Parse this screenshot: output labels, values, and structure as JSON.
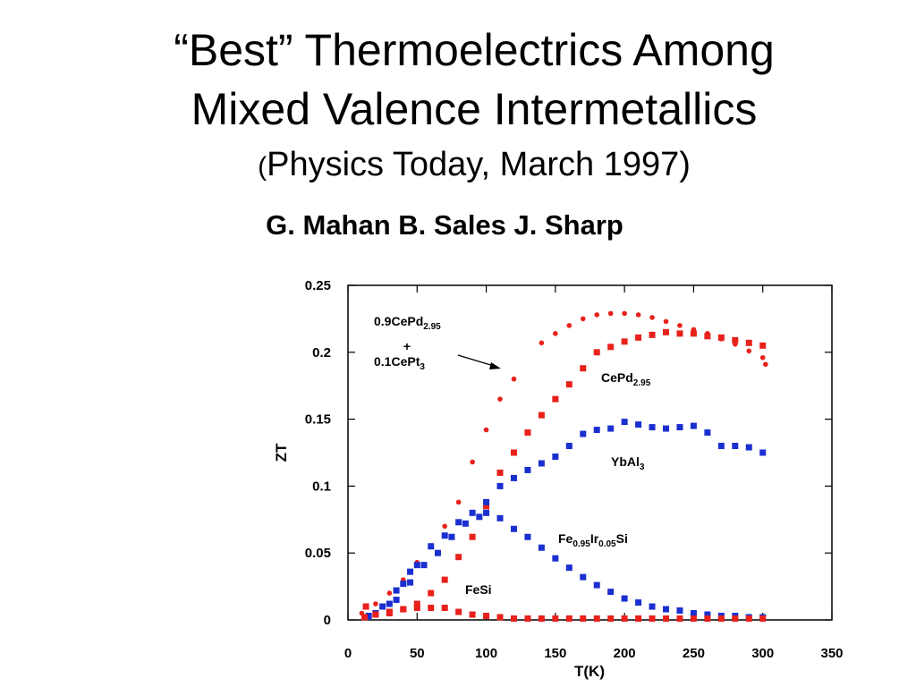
{
  "slide": {
    "title_line1": "“Best” Thermoelectrics Among",
    "title_line2": "Mixed Valence Intermetallics",
    "subtitle_open": "(",
    "subtitle_text": "Physics Today, March 1997)",
    "authors": "G. Mahan B. Sales J. Sharp"
  },
  "colors": {
    "red": "#e8211b",
    "blue": "#1a2fd0",
    "axis": "#000000"
  },
  "chart_data": {
    "type": "scatter",
    "xlabel": "T(K)",
    "ylabel": "ZT",
    "xlim": [
      0,
      350
    ],
    "ylim": [
      0,
      0.25
    ],
    "xticks": [
      "0",
      "50",
      "100",
      "150",
      "200",
      "250",
      "300",
      "350"
    ],
    "yticks": [
      "0",
      "0.05",
      "0.1",
      "0.15",
      "0.2",
      "0.25"
    ],
    "grid": false,
    "series": [
      {
        "name": "0.9CePd2.95 + 0.1CePt3",
        "color": "red",
        "marker": "dot",
        "points": [
          [
            10,
            0.005
          ],
          [
            20,
            0.012
          ],
          [
            30,
            0.02
          ],
          [
            40,
            0.03
          ],
          [
            50,
            0.043
          ],
          [
            60,
            0.055
          ],
          [
            70,
            0.07
          ],
          [
            80,
            0.088
          ],
          [
            90,
            0.118
          ],
          [
            100,
            0.142
          ],
          [
            110,
            0.165
          ],
          [
            120,
            0.18
          ],
          [
            140,
            0.207
          ],
          [
            150,
            0.214
          ],
          [
            160,
            0.22
          ],
          [
            170,
            0.225
          ],
          [
            180,
            0.228
          ],
          [
            190,
            0.229
          ],
          [
            200,
            0.229
          ],
          [
            210,
            0.228
          ],
          [
            220,
            0.226
          ],
          [
            230,
            0.223
          ],
          [
            240,
            0.22
          ],
          [
            250,
            0.217
          ],
          [
            260,
            0.214
          ],
          [
            270,
            0.21
          ],
          [
            280,
            0.206
          ],
          [
            290,
            0.201
          ],
          [
            300,
            0.196
          ],
          [
            302,
            0.191
          ]
        ]
      },
      {
        "name": "CePd2.95",
        "color": "red",
        "marker": "square",
        "points": [
          [
            13,
            0.01
          ],
          [
            20,
            0.005
          ],
          [
            30,
            0.005
          ],
          [
            40,
            0.008
          ],
          [
            50,
            0.012
          ],
          [
            60,
            0.02
          ],
          [
            70,
            0.03
          ],
          [
            80,
            0.047
          ],
          [
            90,
            0.062
          ],
          [
            100,
            0.085
          ],
          [
            110,
            0.11
          ],
          [
            120,
            0.125
          ],
          [
            130,
            0.14
          ],
          [
            140,
            0.153
          ],
          [
            150,
            0.165
          ],
          [
            160,
            0.176
          ],
          [
            170,
            0.188
          ],
          [
            180,
            0.2
          ],
          [
            190,
            0.204
          ],
          [
            200,
            0.208
          ],
          [
            210,
            0.211
          ],
          [
            220,
            0.213
          ],
          [
            230,
            0.215
          ],
          [
            240,
            0.214
          ],
          [
            250,
            0.214
          ],
          [
            260,
            0.212
          ],
          [
            270,
            0.211
          ],
          [
            280,
            0.209
          ],
          [
            290,
            0.207
          ],
          [
            300,
            0.205
          ]
        ]
      },
      {
        "name": "YbAl3",
        "color": "blue",
        "marker": "square",
        "points": [
          [
            13,
            0.002
          ],
          [
            20,
            0.005
          ],
          [
            30,
            0.012
          ],
          [
            35,
            0.022
          ],
          [
            40,
            0.027
          ],
          [
            45,
            0.036
          ],
          [
            50,
            0.041
          ],
          [
            60,
            0.055
          ],
          [
            70,
            0.063
          ],
          [
            80,
            0.073
          ],
          [
            90,
            0.08
          ],
          [
            100,
            0.088
          ],
          [
            110,
            0.1
          ],
          [
            120,
            0.106
          ],
          [
            130,
            0.112
          ],
          [
            140,
            0.117
          ],
          [
            150,
            0.122
          ],
          [
            160,
            0.13
          ],
          [
            170,
            0.139
          ],
          [
            180,
            0.142
          ],
          [
            190,
            0.143
          ],
          [
            200,
            0.148
          ],
          [
            210,
            0.146
          ],
          [
            220,
            0.144
          ],
          [
            230,
            0.143
          ],
          [
            240,
            0.144
          ],
          [
            250,
            0.145
          ],
          [
            260,
            0.14
          ],
          [
            270,
            0.13
          ],
          [
            280,
            0.13
          ],
          [
            290,
            0.129
          ],
          [
            300,
            0.125
          ]
        ]
      },
      {
        "name": "Fe0.95Ir0.05Si",
        "color": "blue",
        "marker": "square",
        "points": [
          [
            15,
            0.003
          ],
          [
            25,
            0.01
          ],
          [
            35,
            0.015
          ],
          [
            45,
            0.028
          ],
          [
            55,
            0.041
          ],
          [
            65,
            0.05
          ],
          [
            75,
            0.062
          ],
          [
            85,
            0.072
          ],
          [
            95,
            0.077
          ],
          [
            100,
            0.08
          ],
          [
            110,
            0.076
          ],
          [
            120,
            0.068
          ],
          [
            130,
            0.062
          ],
          [
            140,
            0.054
          ],
          [
            150,
            0.046
          ],
          [
            160,
            0.039
          ],
          [
            170,
            0.032
          ],
          [
            180,
            0.026
          ],
          [
            190,
            0.021
          ],
          [
            200,
            0.016
          ],
          [
            210,
            0.013
          ],
          [
            220,
            0.01
          ],
          [
            230,
            0.008
          ],
          [
            240,
            0.007
          ],
          [
            250,
            0.005
          ],
          [
            260,
            0.004
          ],
          [
            270,
            0.003
          ],
          [
            280,
            0.003
          ],
          [
            290,
            0.002
          ],
          [
            300,
            0.002
          ]
        ]
      },
      {
        "name": "FeSi",
        "color": "red",
        "marker": "square",
        "points": [
          [
            12,
            0.002
          ],
          [
            20,
            0.004
          ],
          [
            30,
            0.006
          ],
          [
            40,
            0.008
          ],
          [
            50,
            0.009
          ],
          [
            60,
            0.009
          ],
          [
            70,
            0.009
          ],
          [
            80,
            0.006
          ],
          [
            90,
            0.004
          ],
          [
            100,
            0.003
          ],
          [
            110,
            0.002
          ],
          [
            120,
            0.001
          ],
          [
            130,
            0.001
          ],
          [
            140,
            0.001
          ],
          [
            150,
            0.001
          ],
          [
            160,
            0.001
          ],
          [
            170,
            0.001
          ],
          [
            180,
            0.001
          ],
          [
            190,
            0.001
          ],
          [
            200,
            0.001
          ],
          [
            210,
            0.001
          ],
          [
            220,
            0.001
          ],
          [
            230,
            0.001
          ],
          [
            240,
            0.001
          ],
          [
            250,
            0.001
          ],
          [
            260,
            0.001
          ],
          [
            270,
            0.001
          ],
          [
            280,
            0.001
          ],
          [
            290,
            0.001
          ],
          [
            300,
            0.001
          ]
        ]
      }
    ],
    "annotations": {
      "mix_line1_base": "0.9CePd",
      "mix_line1_sub": "2.95",
      "mix_plus": "+",
      "mix_line2_base": "0.1CePt",
      "mix_line2_sub": "3",
      "cepd_base": "CePd",
      "cepd_sub": "2.95",
      "ybal_base": "YbAl",
      "ybal_sub": "3",
      "feir_fe": "Fe",
      "feir_sub1": "0.95",
      "feir_ir": "Ir",
      "feir_sub2": "0.05",
      "feir_si": "Si",
      "fesi": "FeSi"
    }
  }
}
